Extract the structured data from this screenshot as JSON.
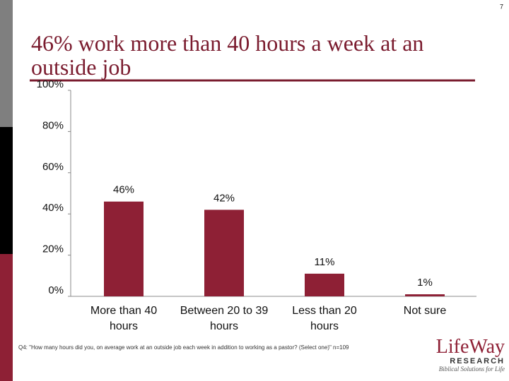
{
  "page_number": "7",
  "chart_data": {
    "type": "bar",
    "title": "46% work more than 40 hours a week at an outside job",
    "categories": [
      "More than 40 hours",
      "Between 20 to 39 hours",
      "Less than 20 hours",
      "Not sure"
    ],
    "values": [
      46,
      42,
      11,
      1
    ],
    "value_labels": [
      "46%",
      "42%",
      "11%",
      "1%"
    ],
    "color": "#8e2035",
    "ylim": [
      0,
      100
    ],
    "yticks": [
      {
        "value": 0,
        "label": "0%"
      },
      {
        "value": 20,
        "label": "20%"
      },
      {
        "value": 40,
        "label": "40%"
      },
      {
        "value": 60,
        "label": "60%"
      },
      {
        "value": 80,
        "label": "80%"
      },
      {
        "value": 100,
        "label": "100%"
      }
    ],
    "grid": false
  },
  "footnote": "Q4: \"How many hours did you, on average work at an outside job each week in addition to working as a pastor? (Select one)\" n=109",
  "logo": {
    "name": "LifeWay",
    "sub": "RESEARCH",
    "tagline": "Biblical Solutions for Life"
  }
}
